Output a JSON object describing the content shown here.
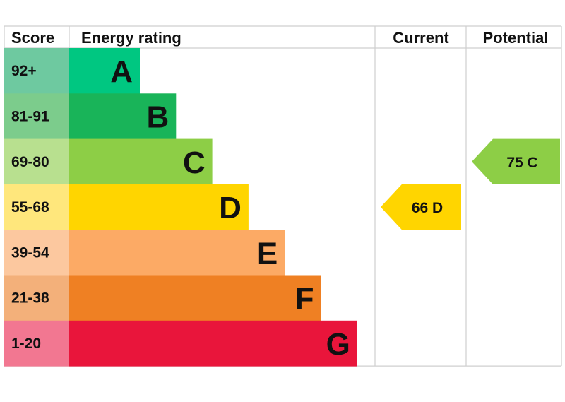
{
  "headers": {
    "score": "Score",
    "rating": "Energy rating",
    "current": "Current",
    "potential": "Potential"
  },
  "chart_data": {
    "type": "bar",
    "categories": [
      "A",
      "B",
      "C",
      "D",
      "E",
      "F",
      "G"
    ],
    "score_ranges": [
      "92+",
      "81-91",
      "69-80",
      "55-68",
      "39-54",
      "21-38",
      "1-20"
    ],
    "band_colors": [
      "#00c781",
      "#19b459",
      "#8dce46",
      "#ffd500",
      "#fcaa65",
      "#ef8023",
      "#e9153b"
    ],
    "score_colors": [
      "#6ec9a0",
      "#7ccc8c",
      "#b8e08f",
      "#ffe77c",
      "#fcc89f",
      "#f3b07a",
      "#f27791"
    ],
    "current": {
      "value": 66,
      "band": "D",
      "label": "66  D",
      "color": "#ffd500"
    },
    "potential": {
      "value": 75,
      "band": "C",
      "label": "75  C",
      "color": "#8dce46"
    }
  }
}
